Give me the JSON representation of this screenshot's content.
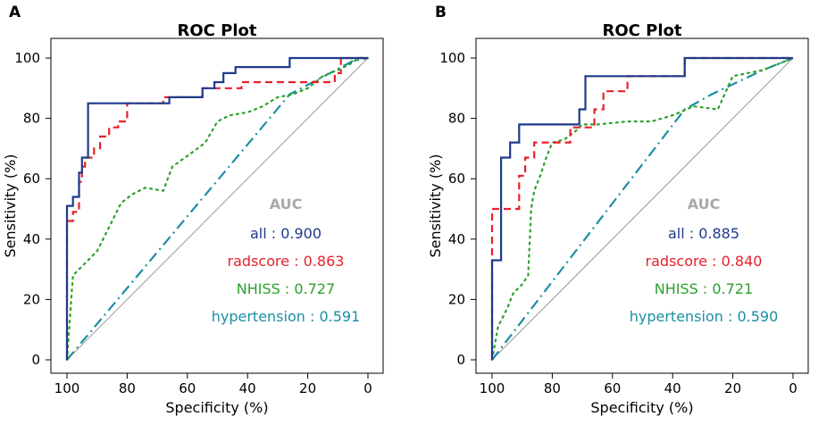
{
  "chart_data": [
    {
      "panel": "A",
      "type": "line",
      "title": "ROC Plot",
      "xlabel": "Specificity (%)",
      "ylabel": "Sensitivity (%)",
      "xlim": [
        100,
        0
      ],
      "ylim": [
        0,
        100
      ],
      "x_ticks": [
        100,
        80,
        60,
        40,
        20,
        0
      ],
      "y_ticks": [
        0,
        20,
        40,
        60,
        80,
        100
      ],
      "auc_heading": "AUC",
      "series": [
        {
          "name": "all",
          "auc_label": "all : 0.900",
          "color": "#1f3a8c",
          "dash": "solid",
          "points": [
            [
              100,
              0
            ],
            [
              100,
              51
            ],
            [
              98,
              51
            ],
            [
              98,
              54
            ],
            [
              96,
              54
            ],
            [
              96,
              62
            ],
            [
              95,
              62
            ],
            [
              95,
              67
            ],
            [
              93,
              67
            ],
            [
              93,
              85
            ],
            [
              66,
              85
            ],
            [
              66,
              87
            ],
            [
              55,
              87
            ],
            [
              55,
              90
            ],
            [
              51,
              90
            ],
            [
              51,
              92
            ],
            [
              48,
              92
            ],
            [
              48,
              95
            ],
            [
              44,
              95
            ],
            [
              44,
              97
            ],
            [
              26,
              97
            ],
            [
              26,
              100
            ],
            [
              0,
              100
            ]
          ]
        },
        {
          "name": "radscore",
          "auc_label": "radscore : 0.863",
          "color": "#e8202a",
          "dash": "8,5",
          "points": [
            [
              100,
              0
            ],
            [
              100,
              46
            ],
            [
              98,
              46
            ],
            [
              98,
              49
            ],
            [
              96,
              49
            ],
            [
              96,
              59
            ],
            [
              95,
              59
            ],
            [
              95,
              64
            ],
            [
              94,
              64
            ],
            [
              94,
              67
            ],
            [
              91,
              67
            ],
            [
              91,
              70
            ],
            [
              89,
              70
            ],
            [
              89,
              74
            ],
            [
              86,
              74
            ],
            [
              86,
              77
            ],
            [
              83,
              77
            ],
            [
              83,
              79
            ],
            [
              80,
              79
            ],
            [
              80,
              85
            ],
            [
              68,
              85
            ],
            [
              68,
              87
            ],
            [
              55,
              87
            ],
            [
              55,
              90
            ],
            [
              42,
              90
            ],
            [
              42,
              92
            ],
            [
              11,
              92
            ],
            [
              11,
              95
            ],
            [
              9,
              95
            ],
            [
              9,
              100
            ],
            [
              0,
              100
            ]
          ]
        },
        {
          "name": "NHISS",
          "auc_label": "NHISS : 0.727",
          "color": "#2ca02c",
          "dash": "2,5",
          "points": [
            [
              100,
              0
            ],
            [
              98,
              28
            ],
            [
              96,
              30
            ],
            [
              93,
              33
            ],
            [
              90,
              36
            ],
            [
              86,
              44
            ],
            [
              82,
              52
            ],
            [
              78,
              55
            ],
            [
              74,
              57
            ],
            [
              68,
              56
            ],
            [
              65,
              64
            ],
            [
              58,
              69
            ],
            [
              54,
              72
            ],
            [
              50,
              79
            ],
            [
              46,
              81
            ],
            [
              40,
              82
            ],
            [
              35,
              84
            ],
            [
              30,
              87
            ],
            [
              25,
              88
            ],
            [
              20,
              90
            ],
            [
              15,
              94
            ],
            [
              10,
              96
            ],
            [
              6,
              98
            ],
            [
              3,
              100
            ],
            [
              0,
              100
            ]
          ]
        },
        {
          "name": "hypertension",
          "auc_label": "hypertension : 0.591",
          "color": "#1a8fa3",
          "dash": "12,5,2,5",
          "points": [
            [
              100,
              0
            ],
            [
              26,
              88
            ],
            [
              5,
              99
            ],
            [
              0,
              100
            ]
          ]
        }
      ]
    },
    {
      "panel": "B",
      "type": "line",
      "title": "ROC Plot",
      "xlabel": "Specificity (%)",
      "ylabel": "Sensitivity (%)",
      "xlim": [
        100,
        0
      ],
      "ylim": [
        0,
        100
      ],
      "x_ticks": [
        100,
        80,
        60,
        40,
        20,
        0
      ],
      "y_ticks": [
        0,
        20,
        40,
        60,
        80,
        100
      ],
      "auc_heading": "AUC",
      "series": [
        {
          "name": "all",
          "auc_label": "all : 0.885",
          "color": "#1f3a8c",
          "dash": "solid",
          "points": [
            [
              100,
              0
            ],
            [
              100,
              33
            ],
            [
              97,
              33
            ],
            [
              97,
              67
            ],
            [
              94,
              67
            ],
            [
              94,
              72
            ],
            [
              91,
              72
            ],
            [
              91,
              78
            ],
            [
              71,
              78
            ],
            [
              71,
              83
            ],
            [
              69,
              83
            ],
            [
              69,
              94
            ],
            [
              36,
              94
            ],
            [
              36,
              100
            ],
            [
              0,
              100
            ]
          ]
        },
        {
          "name": "radscore",
          "auc_label": "radscore : 0.840",
          "color": "#e8202a",
          "dash": "8,5",
          "points": [
            [
              100,
              0
            ],
            [
              100,
              50
            ],
            [
              91,
              50
            ],
            [
              91,
              61
            ],
            [
              89,
              61
            ],
            [
              89,
              67
            ],
            [
              86,
              67
            ],
            [
              86,
              72
            ],
            [
              74,
              72
            ],
            [
              74,
              77
            ],
            [
              66,
              77
            ],
            [
              66,
              83
            ],
            [
              63,
              83
            ],
            [
              63,
              89
            ],
            [
              55,
              89
            ],
            [
              55,
              94
            ],
            [
              36,
              94
            ],
            [
              36,
              100
            ],
            [
              0,
              100
            ]
          ]
        },
        {
          "name": "NHISS",
          "auc_label": "NHISS : 0.721",
          "color": "#2ca02c",
          "dash": "2,5",
          "points": [
            [
              100,
              0
            ],
            [
              98,
              11
            ],
            [
              95,
              17
            ],
            [
              93,
              22
            ],
            [
              90,
              25
            ],
            [
              88,
              28
            ],
            [
              87,
              50
            ],
            [
              86,
              56
            ],
            [
              84,
              61
            ],
            [
              82,
              67
            ],
            [
              80,
              72
            ],
            [
              76,
              73
            ],
            [
              72,
              76
            ],
            [
              70,
              78
            ],
            [
              65,
              78
            ],
            [
              55,
              79
            ],
            [
              47,
              79
            ],
            [
              40,
              81
            ],
            [
              33,
              84
            ],
            [
              25,
              83
            ],
            [
              20,
              94
            ],
            [
              10,
              96
            ],
            [
              5,
              98
            ],
            [
              0,
              100
            ]
          ]
        },
        {
          "name": "hypertension",
          "auc_label": "hypertension : 0.590",
          "color": "#1a8fa3",
          "dash": "12,5,2,5",
          "points": [
            [
              100,
              0
            ],
            [
              36,
              83
            ],
            [
              27,
              88
            ],
            [
              10,
              96
            ],
            [
              0,
              100
            ]
          ]
        }
      ]
    }
  ]
}
